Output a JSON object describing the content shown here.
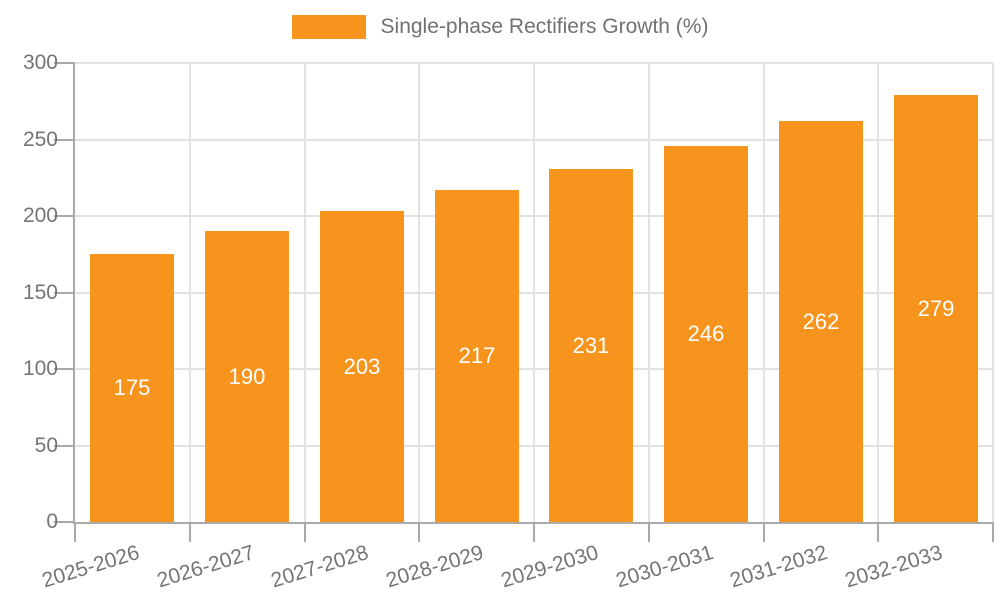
{
  "legend": {
    "label": "Single-phase Rectifiers Growth (%)"
  },
  "colors": {
    "bar": "#F7941E",
    "bar_label": "#FFFFFF",
    "axis_text": "#757575",
    "grid_line": "#E2E2E2",
    "axis_line": "#A9A9A9",
    "background": "#FFFFFF"
  },
  "chart_data": {
    "type": "bar",
    "categories": [
      "2025-2026",
      "2026-2027",
      "2027-2028",
      "2028-2029",
      "2029-2030",
      "2030-2031",
      "2031-2032",
      "2032-2033"
    ],
    "values": [
      175,
      190,
      203,
      217,
      231,
      246,
      262,
      279
    ],
    "series": [
      {
        "name": "Single-phase Rectifiers Growth (%)",
        "values": [
          175,
          190,
          203,
          217,
          231,
          246,
          262,
          279
        ]
      }
    ],
    "title": "",
    "xlabel": "",
    "ylabel": "",
    "ylim": [
      0,
      300
    ],
    "yticks": [
      0,
      50,
      100,
      150,
      200,
      250,
      300
    ],
    "grid": true,
    "legend_position": "top-center",
    "bar_value_labels": "inside-center",
    "x_label_rotation_deg": -17
  }
}
